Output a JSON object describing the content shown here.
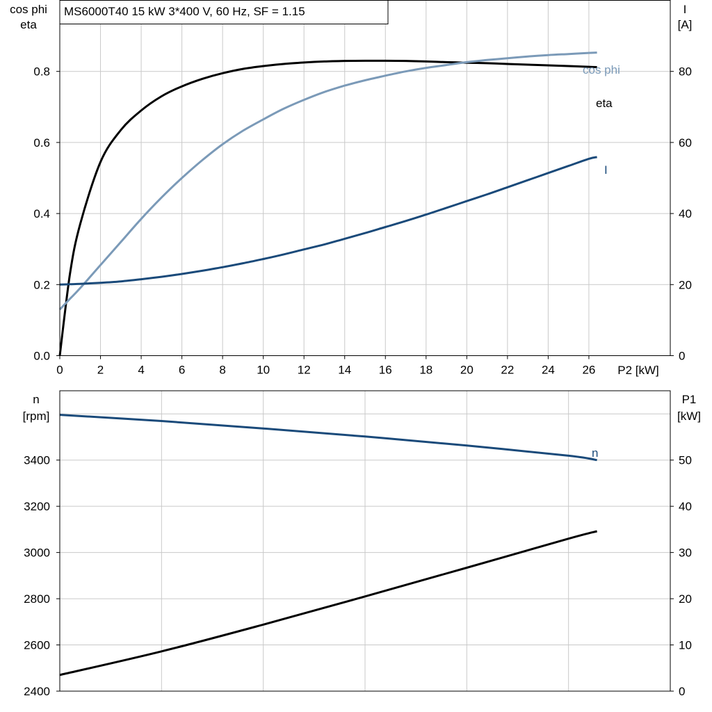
{
  "title": "MS6000T40   15 kW   3*400 V, 60 Hz, SF = 1.15",
  "chart_data": [
    {
      "type": "line",
      "x": [
        0,
        0.5,
        1,
        2,
        3,
        4,
        5,
        6,
        7,
        8,
        9,
        10,
        11,
        12,
        13,
        14,
        15,
        16,
        17,
        18,
        19,
        20,
        21,
        22,
        23,
        24,
        25,
        26,
        26.4
      ],
      "xlabel": "P2 [kW]",
      "xticks": [
        0,
        2,
        4,
        6,
        8,
        10,
        12,
        14,
        16,
        18,
        20,
        22,
        24,
        26
      ],
      "xlim": [
        0,
        30
      ],
      "left_axis": {
        "label_line1": "cos phi",
        "label_line2": "eta",
        "ylim": [
          0,
          1.0
        ],
        "ticks": [
          0.0,
          0.2,
          0.4,
          0.6,
          0.8
        ],
        "tick_labels": [
          "0.0",
          "0.2",
          "0.4",
          "0.6",
          "0.8"
        ]
      },
      "right_axis": {
        "label_line1": "I",
        "label_line2": "[A]",
        "ylim": [
          0,
          100
        ],
        "ticks": [
          0,
          20,
          40,
          60,
          80
        ],
        "tick_labels": [
          "0",
          "20",
          "40",
          "60",
          "80"
        ]
      },
      "series": [
        {
          "name": "eta",
          "axis": "left",
          "color": "#000000",
          "values": [
            0.0,
            0.23,
            0.37,
            0.545,
            0.635,
            0.69,
            0.73,
            0.758,
            0.779,
            0.795,
            0.807,
            0.815,
            0.821,
            0.825,
            0.828,
            0.8295,
            0.83,
            0.83,
            0.8295,
            0.828,
            0.826,
            0.8245,
            0.823,
            0.821,
            0.819,
            0.817,
            0.815,
            0.813,
            0.812
          ]
        },
        {
          "name": "cos phi",
          "axis": "left",
          "color": "#7b9ab8",
          "values": [
            0.13,
            0.16,
            0.19,
            0.255,
            0.32,
            0.385,
            0.445,
            0.5,
            0.55,
            0.595,
            0.633,
            0.665,
            0.695,
            0.72,
            0.742,
            0.76,
            0.775,
            0.788,
            0.8,
            0.81,
            0.818,
            0.826,
            0.832,
            0.837,
            0.842,
            0.846,
            0.849,
            0.852,
            0.853
          ]
        },
        {
          "name": "I",
          "axis": "right",
          "color": "#1a4a7a",
          "values": [
            20,
            20.1,
            20.2,
            20.5,
            20.9,
            21.5,
            22.2,
            23,
            23.9,
            24.9,
            26,
            27.2,
            28.5,
            29.9,
            31.3,
            32.9,
            34.5,
            36.2,
            37.9,
            39.7,
            41.6,
            43.5,
            45.4,
            47.4,
            49.4,
            51.4,
            53.4,
            55.4,
            55.9
          ]
        }
      ]
    },
    {
      "type": "line",
      "x": [
        0,
        26.4
      ],
      "xlim": [
        0,
        30
      ],
      "left_axis": {
        "label_line1": "n",
        "label_line2": "[rpm]",
        "ylim": [
          2400,
          3700
        ],
        "ticks": [
          2400,
          2600,
          2800,
          3000,
          3200,
          3400
        ],
        "tick_labels": [
          "2400",
          "2600",
          "2800",
          "3000",
          "3200",
          "3400"
        ]
      },
      "right_axis": {
        "label_line1": "P1",
        "label_line2": "[kW]",
        "ylim": [
          0,
          65
        ],
        "ticks": [
          0,
          10,
          20,
          30,
          40,
          50
        ],
        "tick_labels": [
          "0",
          "10",
          "20",
          "30",
          "40",
          "50"
        ]
      },
      "series": [
        {
          "name": "n",
          "axis": "left",
          "color": "#1a4a7a",
          "x": [
            0,
            5,
            10,
            15,
            20,
            25,
            26.4
          ],
          "values": [
            3596,
            3569,
            3537,
            3502,
            3463,
            3419,
            3400
          ]
        },
        {
          "name": "",
          "axis": "right",
          "color": "#000000",
          "x": [
            0,
            5,
            10,
            15,
            20,
            25,
            26.4
          ],
          "values": [
            3.5,
            8.6,
            14.4,
            20.5,
            26.7,
            33.0,
            34.6
          ]
        }
      ]
    }
  ]
}
